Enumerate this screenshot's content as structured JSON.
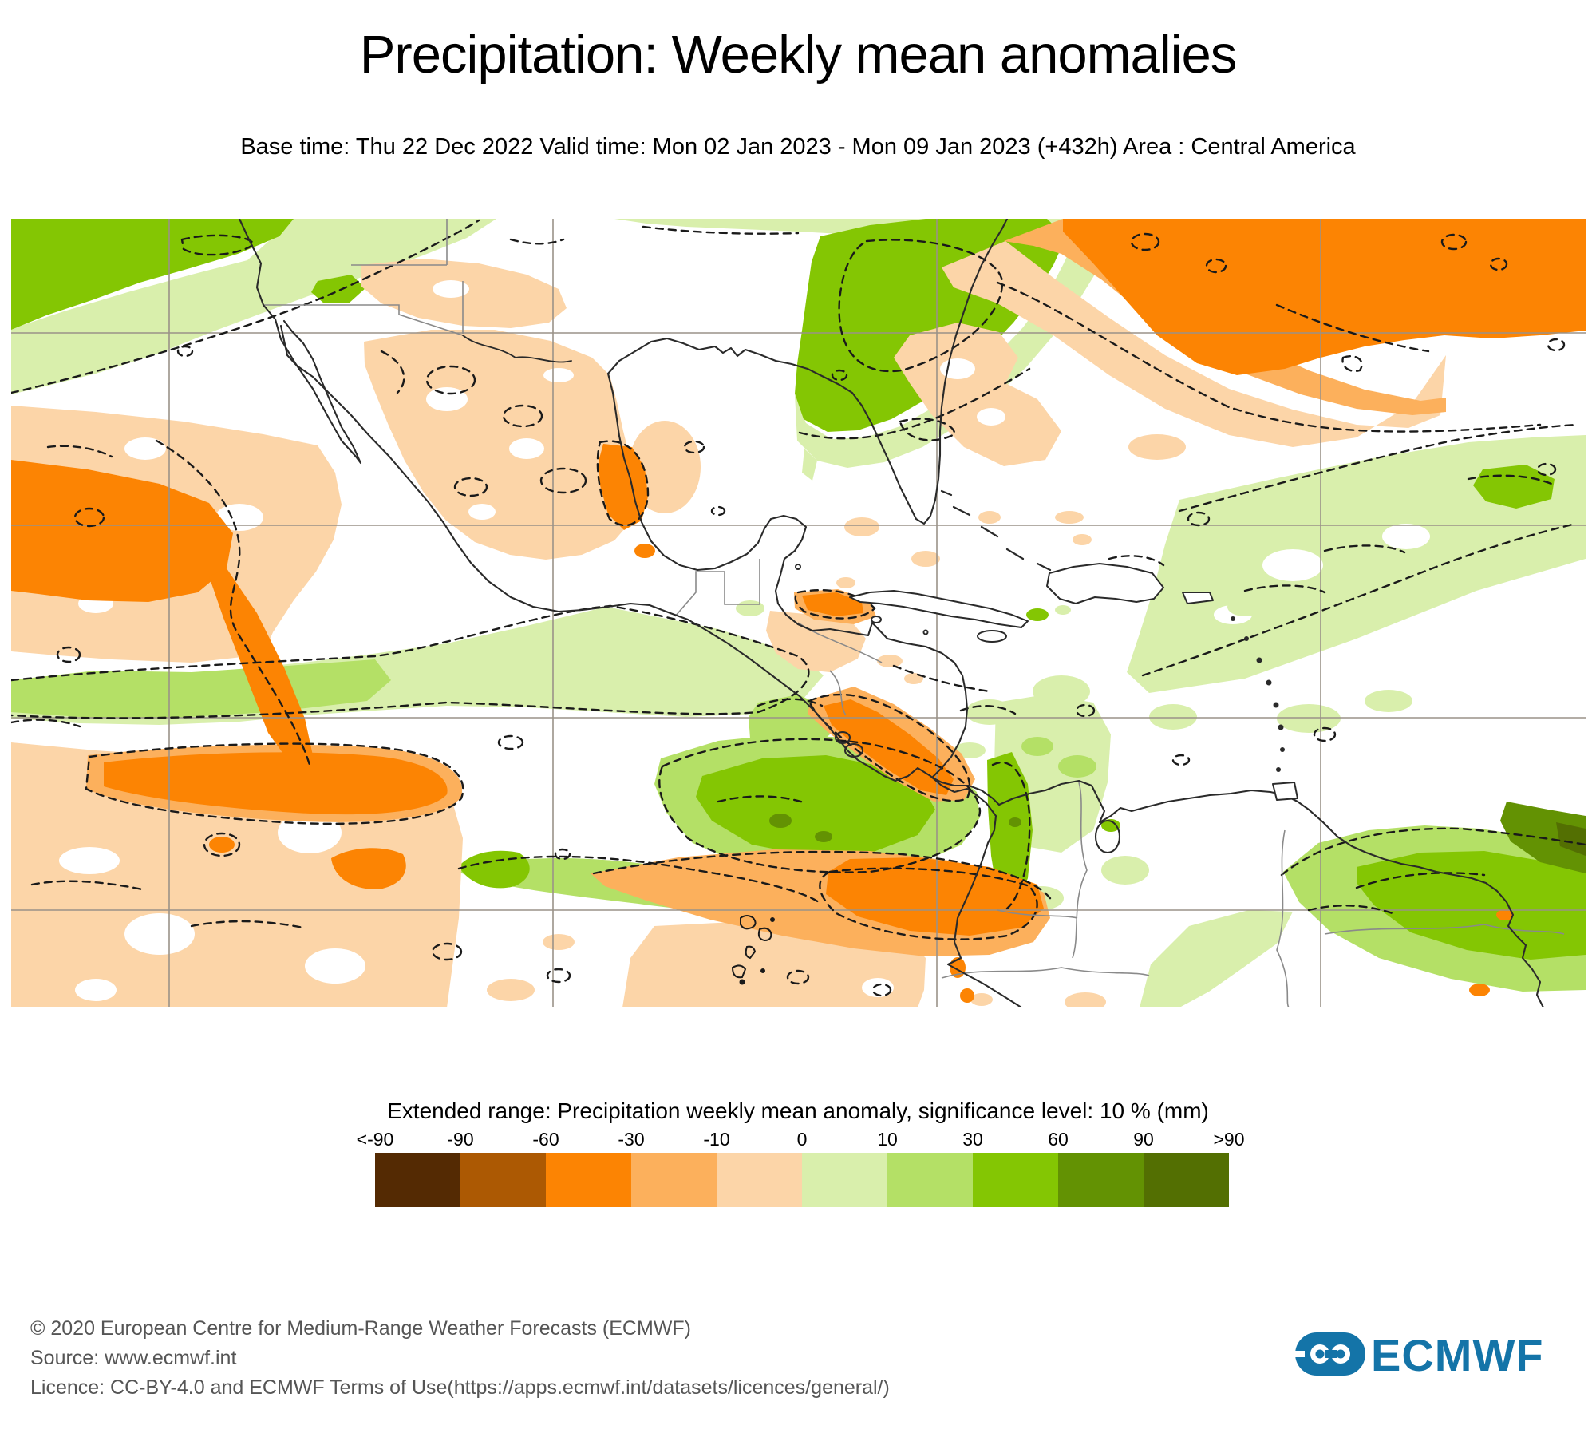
{
  "title": "Precipitation: Weekly mean anomalies",
  "subtitle": "Base time: Thu 22 Dec 2022 Valid time: Mon 02 Jan 2023 - Mon 09 Jan 2023 (+432h) Area : Central America",
  "legend": {
    "title": "Extended range: Precipitation weekly mean anomaly, significance level: 10 % (mm)",
    "tick_labels": [
      "<-90",
      "-90",
      "-60",
      "-30",
      "-10",
      "0",
      "10",
      "30",
      "60",
      "90",
      ">90"
    ],
    "colors": [
      "#542A03",
      "#AC5903",
      "#FC8403",
      "#FCB05C",
      "#FCD5A8",
      "#D9EFAC",
      "#B4E066",
      "#84C603",
      "#639203",
      "#536F02"
    ]
  },
  "map": {
    "anomaly_palette": {
      "strong_dry": "#FC8403",
      "moderate_dry": "#FCB05C",
      "weak_dry": "#FCD5A8",
      "weak_wet": "#D9EFAC",
      "moderate_wet": "#B4E066",
      "strong_wet": "#84C603",
      "very_strong_wet": "#639203",
      "extreme_wet": "#536F02"
    }
  },
  "footer": {
    "copyright": "© 2020 European Centre for Medium-Range Weather Forecasts (ECMWF)",
    "source": "Source: www.ecmwf.int",
    "licence": "Licence: CC-BY-4.0 and ECMWF Terms of Use(https://apps.ecmwf.int/datasets/licences/general/)"
  },
  "logo": {
    "text": "ECMWF",
    "color": "#1474A8"
  }
}
